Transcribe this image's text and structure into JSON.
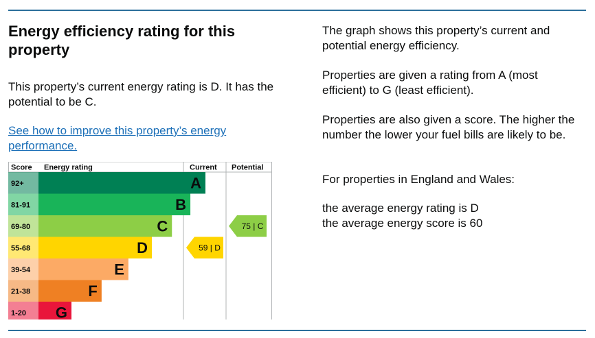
{
  "heading": "Energy efficiency rating for this property",
  "current_rating_text": "This property’s current energy rating is D. It has the potential to be C.",
  "improve_link": "See how to improve this property’s energy performance.",
  "info": {
    "p1": "The graph shows this property’s current and potential energy efficiency.",
    "p2": "Properties are given a rating from A (most efficient) to G (least efficient).",
    "p3": "Properties are also given a score. The higher the number the lower your fuel bills are likely to be.",
    "p4": "For properties in England and Wales:",
    "p5a": "the average energy rating is D",
    "p5b": "the average energy score is 60"
  },
  "chart_data": {
    "type": "bar",
    "columns": {
      "score": "Score",
      "rating": "Energy rating",
      "current": "Current",
      "potential": "Potential"
    },
    "bands": [
      {
        "score": "92+",
        "letter": "A",
        "max": 100,
        "color": "#008054"
      },
      {
        "score": "81-91",
        "letter": "B",
        "max": 91,
        "color": "#19b459"
      },
      {
        "score": "69-80",
        "letter": "C",
        "max": 80,
        "color": "#8dce46"
      },
      {
        "score": "55-68",
        "letter": "D",
        "max": 68,
        "color": "#ffd500"
      },
      {
        "score": "39-54",
        "letter": "E",
        "max": 54,
        "color": "#fcaa65"
      },
      {
        "score": "21-38",
        "letter": "F",
        "max": 38,
        "color": "#ef8023"
      },
      {
        "score": "1-20",
        "letter": "G",
        "max": 20,
        "color": "#e9153b"
      }
    ],
    "current": {
      "value": 59,
      "letter": "D",
      "label": "59 | D",
      "color": "#ffd500"
    },
    "potential": {
      "value": 75,
      "letter": "C",
      "label": "75 | C",
      "color": "#8dce46"
    }
  }
}
